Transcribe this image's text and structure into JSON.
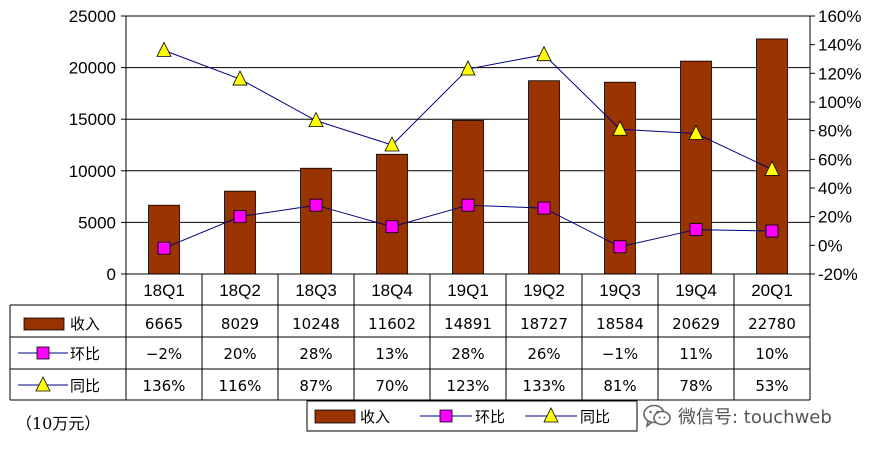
{
  "chart_data": {
    "type": "bar",
    "categories": [
      "18Q1",
      "18Q2",
      "18Q3",
      "18Q4",
      "19Q1",
      "19Q2",
      "19Q3",
      "19Q4",
      "20Q1"
    ],
    "series": [
      {
        "name": "收入",
        "type": "bar",
        "axis": "left",
        "color": "#993300",
        "values": [
          6665,
          8029,
          10248,
          11602,
          14891,
          18727,
          18584,
          20629,
          22780
        ]
      },
      {
        "name": "环比",
        "type": "line",
        "axis": "right",
        "color": "#ff00ff",
        "values": [
          -2,
          20,
          28,
          13,
          28,
          26,
          -1,
          11,
          10
        ],
        "labels": [
          "-2%",
          "20%",
          "28%",
          "13%",
          "28%",
          "26%",
          "-1%",
          "11%",
          "10%"
        ]
      },
      {
        "name": "同比",
        "type": "line",
        "axis": "right",
        "color": "#ffff00",
        "values": [
          136,
          116,
          87,
          70,
          123,
          133,
          81,
          78,
          53
        ],
        "labels": [
          "136%",
          "116%",
          "87%",
          "70%",
          "123%",
          "133%",
          "81%",
          "78%",
          "53%"
        ]
      }
    ],
    "ylim": [
      0,
      25000
    ],
    "yticks": [
      0,
      5000,
      10000,
      15000,
      20000,
      25000
    ],
    "y2lim": [
      -20,
      160
    ],
    "y2ticks": [
      "-20%",
      "0%",
      "20%",
      "40%",
      "60%",
      "80%",
      "100%",
      "120%",
      "140%",
      "160%"
    ],
    "grid": true,
    "legend": "bottom-right",
    "data_table": true
  },
  "unit_label": "（10万元）",
  "watermark": {
    "text": "微信号: touchweb",
    "icon": "wechat-icon"
  },
  "colors": {
    "bar": "#993300",
    "mom_marker": "#ff00ff",
    "yoy_marker": "#ffff00",
    "line": "#000080"
  }
}
